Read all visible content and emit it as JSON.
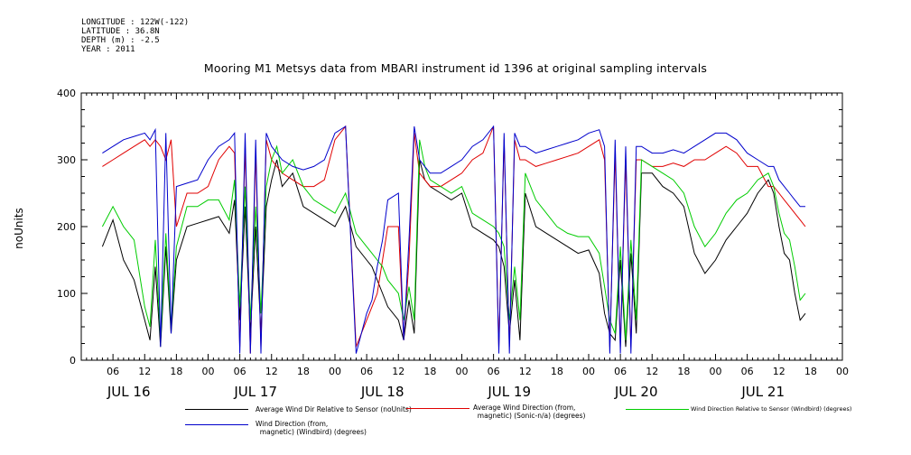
{
  "meta": {
    "longitude": "LONGITUDE : 122W(-122)",
    "latitude": "LATITUDE : 36.8N",
    "depth": "DEPTH (m) : -2.5",
    "year": "YEAR : 2011"
  },
  "colors": {
    "black_series": "#000000",
    "red_series": "#e00000",
    "green_series": "#00cc00",
    "blue_series": "#0000cc"
  },
  "chart_data": {
    "type": "line",
    "title": "Mooring M1 Metsys data from MBARI instrument id 1396 at original sampling intervals",
    "ylabel": "noUnits",
    "xlabel": "",
    "ylim": [
      0,
      400
    ],
    "yticks": [
      "0",
      "100",
      "200",
      "300",
      "400"
    ],
    "xlim": [
      0,
      144
    ],
    "xtick_hours": [
      6,
      12,
      18,
      24,
      30,
      36,
      42,
      48,
      54,
      60,
      66,
      72,
      78,
      84,
      90,
      96,
      102,
      108,
      114,
      120,
      126,
      132,
      138,
      144
    ],
    "xtick_labels": [
      "06",
      "12",
      "18",
      "00",
      "06",
      "12",
      "18",
      "00",
      "06",
      "12",
      "18",
      "00",
      "06",
      "12",
      "18",
      "00",
      "06",
      "12",
      "18",
      "00",
      "06",
      "12",
      "18",
      "00"
    ],
    "day_labels": [
      {
        "label": "JUL 16",
        "hour": 9
      },
      {
        "label": "JUL 17",
        "hour": 33
      },
      {
        "label": "JUL 18",
        "hour": 57
      },
      {
        "label": "JUL 19",
        "hour": 81
      },
      {
        "label": "JUL 20",
        "hour": 105
      },
      {
        "label": "JUL 21",
        "hour": 129
      }
    ],
    "x_hours": [
      4,
      6,
      8,
      10,
      12,
      13,
      14,
      15,
      16,
      17,
      18,
      20,
      22,
      24,
      26,
      28,
      29,
      30,
      31,
      32,
      33,
      34,
      35,
      36,
      37,
      38,
      40,
      42,
      44,
      46,
      48,
      50,
      52,
      54,
      55,
      56,
      57,
      58,
      60,
      61,
      62,
      63,
      64,
      65,
      66,
      68,
      70,
      72,
      74,
      76,
      78,
      79,
      80,
      81,
      82,
      83,
      84,
      86,
      88,
      90,
      92,
      94,
      96,
      98,
      99,
      100,
      101,
      102,
      103,
      104,
      105,
      106,
      108,
      110,
      112,
      114,
      116,
      118,
      120,
      122,
      124,
      126,
      128,
      130,
      131,
      132,
      133,
      134,
      135,
      136,
      137
    ],
    "series": [
      {
        "name": "Average Wind Dir Relative to Sensor (noUnits)",
        "values": [
          170,
          210,
          150,
          120,
          60,
          30,
          140,
          20,
          170,
          40,
          150,
          200,
          205,
          210,
          215,
          190,
          240,
          60,
          230,
          40,
          200,
          40,
          230,
          270,
          300,
          260,
          280,
          230,
          220,
          210,
          200,
          230,
          170,
          150,
          140,
          120,
          100,
          80,
          60,
          30,
          90,
          40,
          300,
          270,
          260,
          250,
          240,
          250,
          200,
          190,
          180,
          170,
          140,
          40,
          120,
          30,
          250,
          200,
          190,
          180,
          170,
          160,
          165,
          130,
          70,
          40,
          30,
          150,
          20,
          160,
          40,
          280,
          280,
          260,
          250,
          230,
          160,
          130,
          150,
          180,
          200,
          220,
          250,
          270,
          250,
          200,
          160,
          150,
          100,
          60,
          70
        ]
      },
      {
        "name": "Average Wind Direction (from, magnetic) (Sonic-n/a) (degrees)",
        "values": [
          290,
          300,
          310,
          320,
          330,
          320,
          330,
          320,
          300,
          330,
          200,
          250,
          250,
          260,
          300,
          320,
          310,
          20,
          320,
          10,
          310,
          20,
          330,
          300,
          290,
          280,
          270,
          260,
          260,
          270,
          330,
          350,
          20,
          60,
          80,
          100,
          150,
          200,
          200,
          30,
          150,
          340,
          280,
          270,
          260,
          260,
          270,
          280,
          300,
          310,
          350,
          20,
          330,
          20,
          330,
          300,
          300,
          290,
          295,
          300,
          305,
          310,
          320,
          330,
          300,
          20,
          310,
          20,
          300,
          20,
          300,
          300,
          290,
          290,
          295,
          290,
          300,
          300,
          310,
          320,
          310,
          290,
          290,
          260,
          260,
          250,
          240,
          230,
          220,
          210,
          200
        ]
      },
      {
        "name": "Wind Direction Relative to Sensor (Windbird) (degrees)",
        "values": [
          200,
          230,
          200,
          180,
          80,
          50,
          180,
          30,
          190,
          50,
          170,
          230,
          230,
          240,
          240,
          210,
          270,
          80,
          260,
          60,
          230,
          70,
          260,
          300,
          320,
          280,
          300,
          260,
          240,
          230,
          220,
          250,
          190,
          170,
          160,
          150,
          140,
          120,
          100,
          60,
          110,
          60,
          330,
          290,
          270,
          260,
          250,
          260,
          220,
          210,
          200,
          190,
          170,
          60,
          140,
          60,
          280,
          240,
          220,
          200,
          190,
          185,
          185,
          160,
          110,
          60,
          40,
          170,
          30,
          180,
          60,
          300,
          290,
          280,
          270,
          250,
          200,
          170,
          190,
          220,
          240,
          250,
          270,
          280,
          260,
          220,
          190,
          180,
          140,
          90,
          100
        ]
      },
      {
        "name": "Wind Direction (from, magnetic) (Windbird) (degrees)",
        "values": [
          310,
          320,
          330,
          335,
          340,
          330,
          345,
          20,
          340,
          40,
          260,
          265,
          270,
          300,
          320,
          330,
          340,
          10,
          340,
          10,
          330,
          10,
          340,
          320,
          310,
          300,
          290,
          285,
          290,
          300,
          340,
          350,
          10,
          70,
          90,
          140,
          180,
          240,
          250,
          30,
          180,
          350,
          300,
          290,
          280,
          280,
          290,
          300,
          320,
          330,
          350,
          10,
          340,
          10,
          340,
          320,
          320,
          310,
          315,
          320,
          325,
          330,
          340,
          345,
          320,
          10,
          330,
          10,
          320,
          10,
          320,
          320,
          310,
          310,
          315,
          310,
          320,
          330,
          340,
          340,
          330,
          310,
          300,
          290,
          290,
          270,
          260,
          250,
          240,
          230,
          230
        ]
      }
    ],
    "legend": [
      {
        "label": "Average Wind Dir Relative to Sensor (noUnits)"
      },
      {
        "label": "Average Wind Direction (from,\n  magnetic) (Sonic-n/a) (degrees)"
      },
      {
        "label": "Wind Direction Relative to Sensor (Windbird) (degrees)"
      },
      {
        "label": "Wind Direction (from,\n  magnetic) (Windbird) (degrees)"
      }
    ]
  }
}
